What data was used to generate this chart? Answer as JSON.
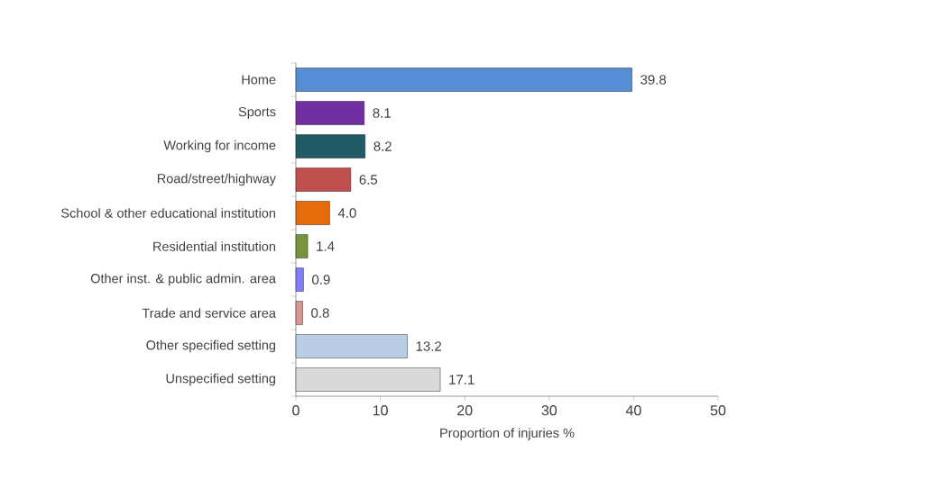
{
  "chart_data": {
    "type": "bar",
    "orientation": "horizontal",
    "xlabel": "Proportion of injuries %",
    "categories": [
      "Home",
      "Sports",
      "Working for income",
      "Road/street/highway",
      "School & other educational institution",
      "Residential institution",
      "Other inst. &  public admin. area",
      "Trade and service area",
      "Other specified setting",
      "Unspecified setting"
    ],
    "values": [
      39.8,
      8.1,
      8.2,
      6.5,
      4.0,
      1.4,
      0.9,
      0.8,
      13.2,
      17.1
    ],
    "value_labels": [
      "39.8",
      "8.1",
      "8.2",
      "6.5",
      "4.0",
      "1.4",
      "0.9",
      "0.8",
      "13.2",
      "17.1"
    ],
    "colors": [
      "#558ed5",
      "#7030a0",
      "#215967",
      "#c0504d",
      "#e46c0a",
      "#77933c",
      "#8080ff",
      "#d99694",
      "#b9cde5",
      "#d9d9d9"
    ],
    "xlim": [
      0,
      50
    ],
    "xticks": [
      0,
      10,
      20,
      30,
      40,
      50
    ]
  }
}
